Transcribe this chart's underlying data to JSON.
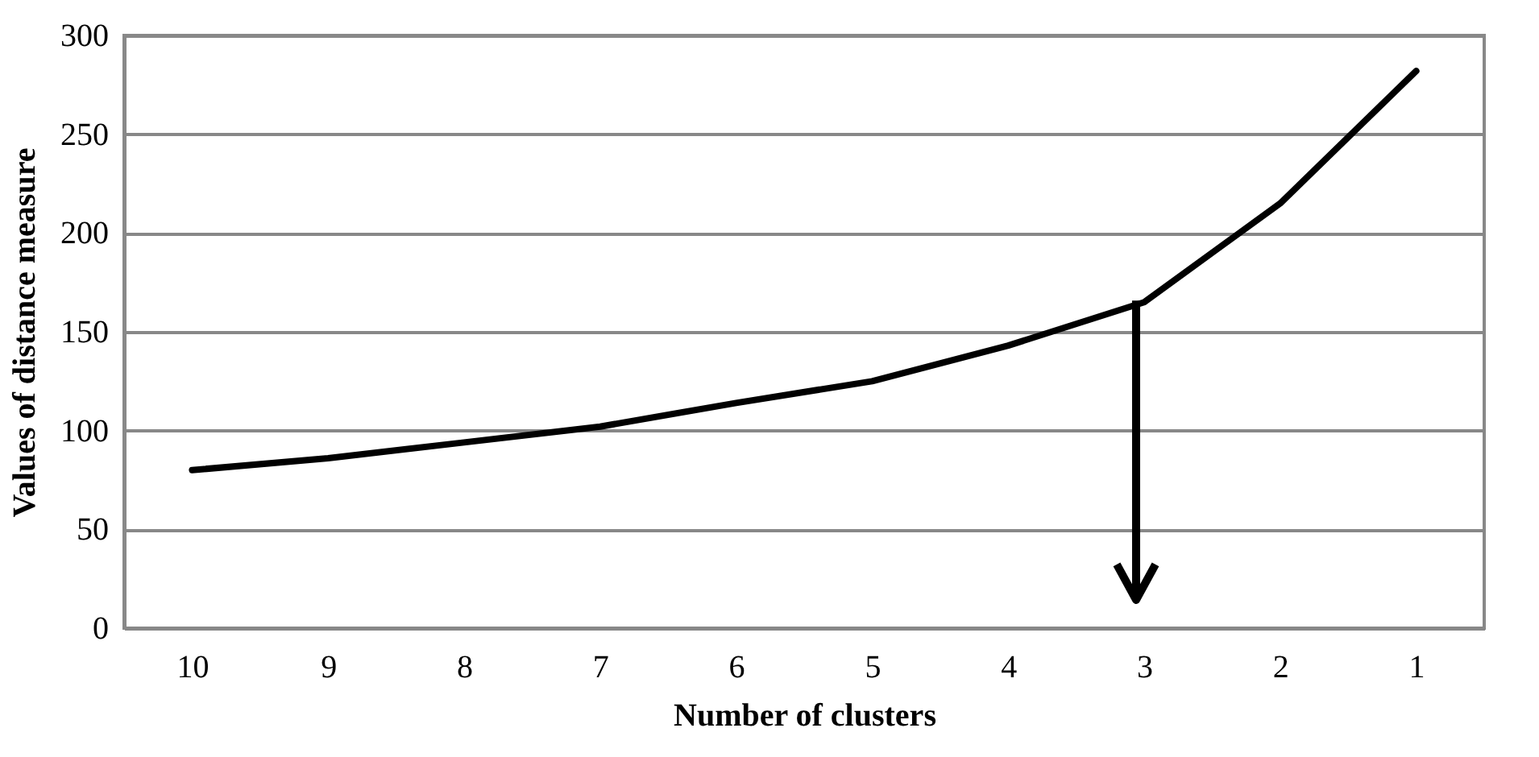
{
  "chart_data": {
    "type": "line",
    "xlabel": "Number of clusters",
    "ylabel": "Values of distance measure",
    "categories": [
      "10",
      "9",
      "8",
      "7",
      "6",
      "5",
      "4",
      "3",
      "2",
      "1"
    ],
    "series": [
      {
        "color": "#000000",
        "values": [
          80,
          86,
          94,
          102,
          114,
          125,
          143,
          165,
          215,
          282
        ]
      }
    ],
    "ylim": [
      0,
      300
    ],
    "yticks": [
      0,
      50,
      100,
      150,
      200,
      250,
      300
    ],
    "grid": "y",
    "marker": "none",
    "line_style": "solid"
  }
}
